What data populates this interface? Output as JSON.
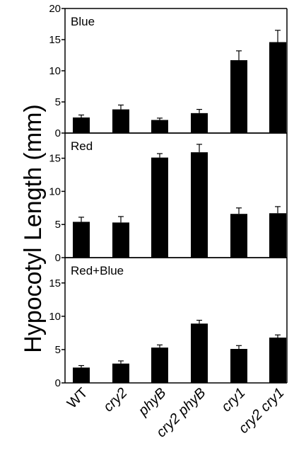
{
  "chart_data": {
    "type": "bar",
    "ylabel": "Hypocotyl Length (mm)",
    "categories": [
      "WT",
      "cry2",
      "phyB",
      "cry2 phyB",
      "cry1",
      "cry2 cry1"
    ],
    "panels": [
      {
        "title": "Blue",
        "ylim": [
          0,
          20
        ],
        "yticks": [
          0,
          5,
          10,
          15,
          20
        ],
        "values": [
          2.5,
          3.8,
          2.1,
          3.2,
          11.7,
          14.6
        ],
        "errors": [
          0.4,
          0.7,
          0.3,
          0.6,
          1.5,
          1.9
        ]
      },
      {
        "title": "Red",
        "ylim": [
          0,
          18.8
        ],
        "yticks": [
          0,
          5,
          10,
          15
        ],
        "values": [
          5.4,
          5.3,
          15.1,
          15.9,
          6.6,
          6.7
        ],
        "errors": [
          0.7,
          0.9,
          0.6,
          1.2,
          0.9,
          1.0
        ]
      },
      {
        "title": "Red+Blue",
        "ylim": [
          0,
          18.8
        ],
        "yticks": [
          0,
          5,
          10,
          15
        ],
        "values": [
          2.3,
          2.9,
          5.3,
          8.9,
          5.1,
          6.8
        ],
        "errors": [
          0.3,
          0.4,
          0.4,
          0.5,
          0.5,
          0.4
        ]
      }
    ]
  }
}
